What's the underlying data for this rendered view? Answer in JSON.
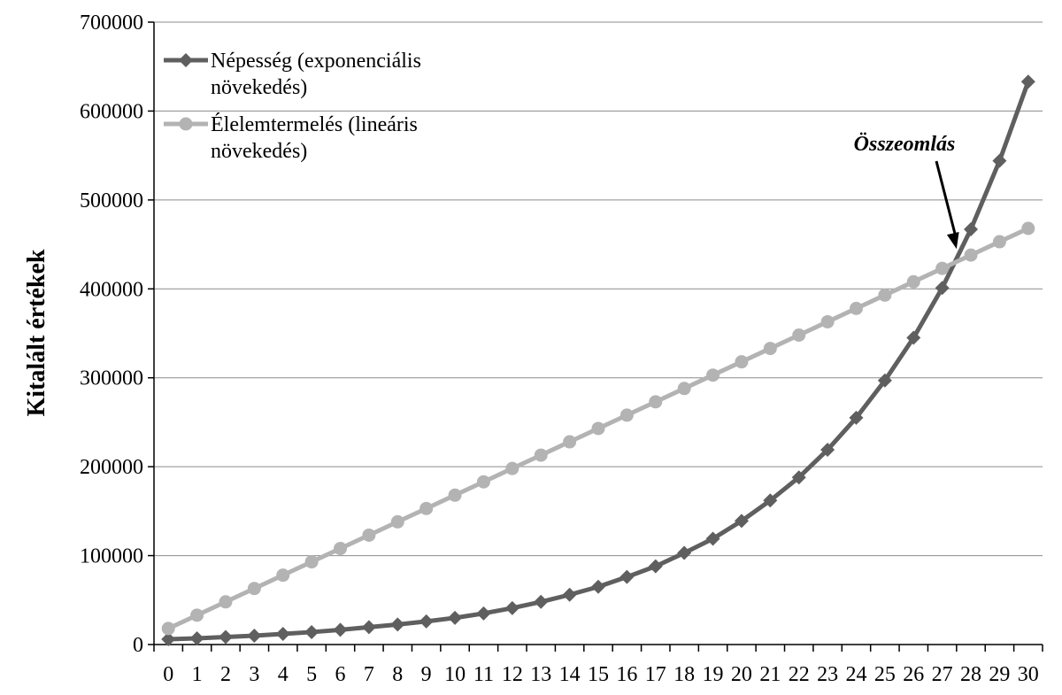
{
  "chart_data": {
    "type": "line",
    "ylabel": "Kitalált értékek",
    "xlabel": "",
    "ylim": [
      0,
      700000
    ],
    "yticks": [
      0,
      100000,
      200000,
      300000,
      400000,
      500000,
      600000,
      700000
    ],
    "ytick_labels": [
      "0",
      "100000",
      "200000",
      "300000",
      "400000",
      "500000",
      "600000",
      "700000"
    ],
    "x": [
      0,
      1,
      2,
      3,
      4,
      5,
      6,
      7,
      8,
      9,
      10,
      11,
      12,
      13,
      14,
      15,
      16,
      17,
      18,
      19,
      20,
      21,
      22,
      23,
      24,
      25,
      26,
      27,
      28,
      29,
      30
    ],
    "x_labels": [
      "0",
      "1",
      "2",
      "3",
      "4",
      "5",
      "6",
      "7",
      "8",
      "9",
      "10",
      "11",
      "12",
      "13",
      "14",
      "15",
      "16",
      "17",
      "18",
      "19",
      "20",
      "21",
      "22",
      "23",
      "24",
      "25",
      "26",
      "27",
      "28",
      "29",
      "30"
    ],
    "grid": "horizontal",
    "legend_position": "top-left",
    "series": [
      {
        "name_lines": [
          "Népesség (exponenciális",
          "növekedés)"
        ],
        "marker": "diamond",
        "color": "#5f5f5f",
        "values": [
          6000,
          7000,
          8500,
          10000,
          12000,
          14000,
          16500,
          19500,
          22500,
          26000,
          30000,
          35000,
          41000,
          48000,
          56000,
          65000,
          76000,
          88000,
          103000,
          119000,
          139000,
          162000,
          188000,
          219000,
          255000,
          297000,
          345000,
          401000,
          467000,
          544000,
          633000
        ]
      },
      {
        "name_lines": [
          "Élelemtermelés (lineáris",
          "növekedés)"
        ],
        "marker": "circle",
        "color": "#b3b3b3",
        "values": [
          18000,
          33000,
          48000,
          63000,
          78000,
          93000,
          108000,
          123000,
          138000,
          153000,
          168000,
          183000,
          198000,
          213000,
          228000,
          243000,
          258000,
          273000,
          288000,
          303000,
          318000,
          333000,
          348000,
          363000,
          378000,
          393000,
          408000,
          423000,
          438000,
          453000,
          468000
        ]
      }
    ],
    "annotation": {
      "text": "Összeomlás",
      "points_to_x": 27.5,
      "points_to_y": 435000
    }
  }
}
